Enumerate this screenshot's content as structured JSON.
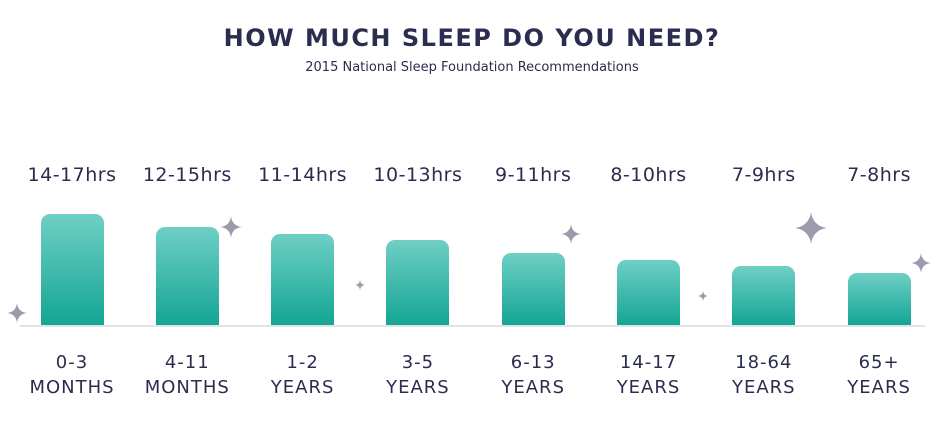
{
  "chart_data": {
    "type": "bar",
    "title": "HOW MUCH SLEEP DO YOU NEED?",
    "subtitle": "2015 National Sleep Foundation Recommendations",
    "categories": [
      "0-3\nMONTHS",
      "4-11\nMONTHS",
      "1-2\nYEARS",
      "3-5\nYEARS",
      "6-13\nYEARS",
      "14-17\nYEARS",
      "18-64\nYEARS",
      "65+\nYEARS"
    ],
    "values": [
      17,
      15,
      14,
      13,
      11,
      10,
      9,
      8
    ],
    "value_labels": [
      "14-17hrs",
      "12-15hrs",
      "11-14hrs",
      "10-13hrs",
      "9-11hrs",
      "8-10hrs",
      "7-9hrs",
      "7-8hrs"
    ],
    "color": "#14a595"
  }
}
